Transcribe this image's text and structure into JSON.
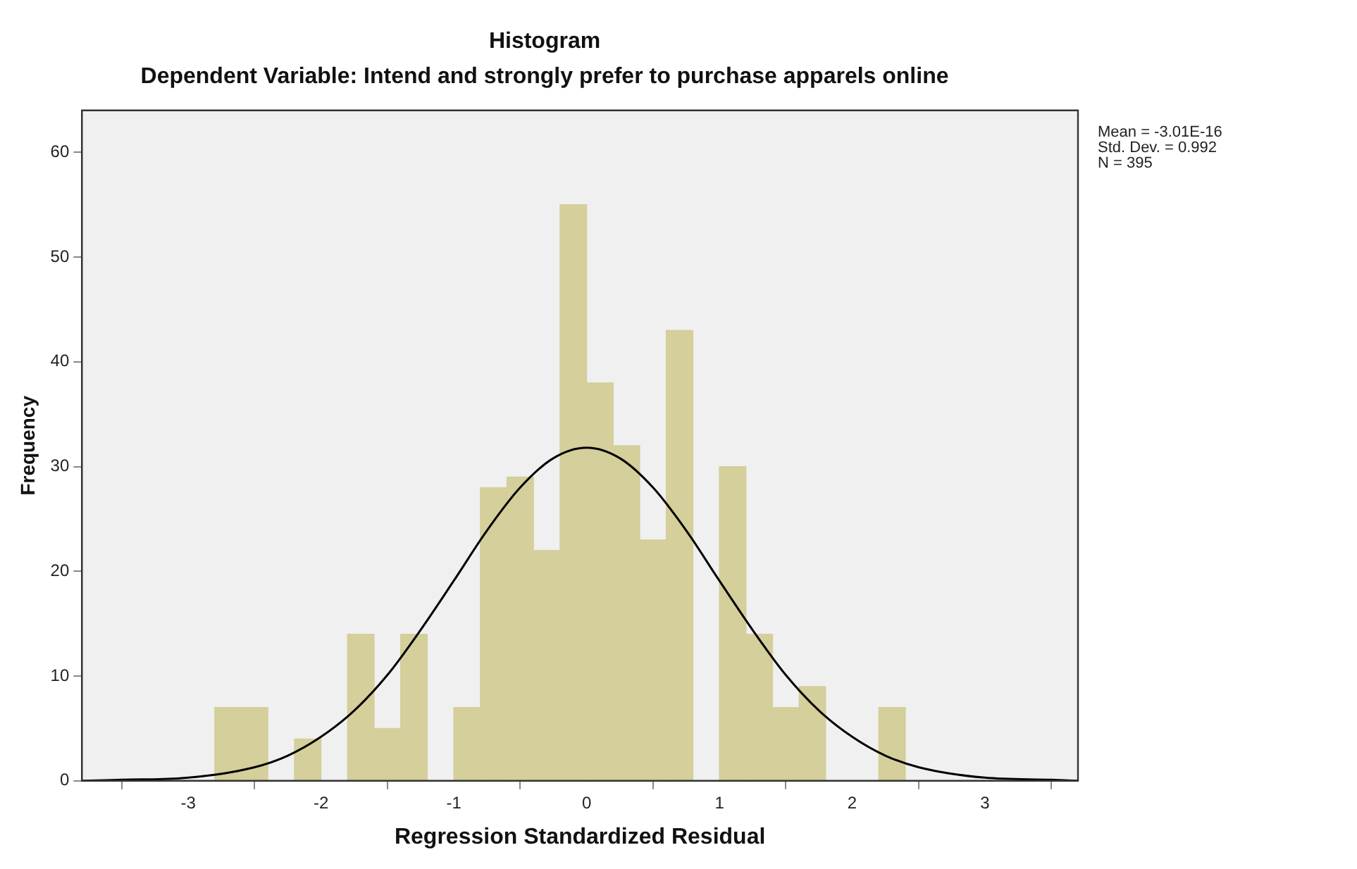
{
  "chart_data": {
    "type": "histogram",
    "title": "Histogram",
    "subtitle": "Dependent Variable: Intend and strongly prefer to purchase apparels online",
    "xlabel": "Regression Standardized Residual",
    "ylabel": "Frequency",
    "bins": [
      -2.8,
      -2.6,
      -2.4,
      -2.2,
      -2.0,
      -1.8,
      -1.6,
      -1.4,
      -1.2,
      -1.0,
      -0.8,
      -0.6,
      -0.4,
      -0.2,
      0,
      0.2,
      0.4,
      0.6,
      0.8,
      1.0,
      1.2,
      1.4,
      1.6,
      1.8,
      2.0,
      2.2,
      2.4
    ],
    "values": [
      7,
      7,
      0,
      4,
      0,
      14,
      5,
      14,
      0,
      7,
      28,
      29,
      22,
      55,
      38,
      32,
      23,
      43,
      0,
      30,
      14,
      7,
      9,
      0,
      0,
      7
    ],
    "color": "#d4cf9b",
    "series": [
      {
        "type": "line",
        "color": "#000000",
        "x": [
          -3.8,
          -3.5,
          -3,
          -2.5,
          -2.25,
          -2,
          -1.75,
          -1.5,
          -1.25,
          -1,
          -0.75,
          -0.5,
          -0.25,
          0,
          0.25,
          0.5,
          0.75,
          1,
          1.25,
          1.5,
          1.75,
          2,
          2.25,
          2.5,
          3,
          3.5,
          3.7
        ],
        "values": [
          0,
          0.1,
          0.3,
          1.3,
          2.4,
          4.2,
          6.7,
          10.1,
          14.4,
          19.1,
          23.9,
          28,
          30.8,
          31.8,
          30.8,
          28,
          23.9,
          19.1,
          14.4,
          10.1,
          6.7,
          4.2,
          2.4,
          1.3,
          0.3,
          0.1,
          0
        ]
      }
    ],
    "xlim": [
      -3.8,
      3.7
    ],
    "xticks": [
      -3,
      -2,
      -1,
      0,
      1,
      2,
      3
    ],
    "ylim": [
      0,
      64
    ],
    "yticks": [
      0,
      10,
      20,
      30,
      40,
      50,
      60
    ],
    "grid": false,
    "legend": false,
    "marker": "none",
    "annotations": [
      "Mean = -3.01E-16",
      "Std. Dev. = 0.992",
      "N = 395"
    ]
  }
}
